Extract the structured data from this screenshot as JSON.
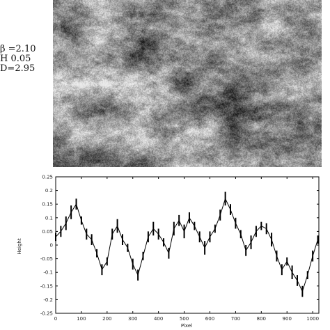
{
  "image": {
    "description_free": true,
    "colormap": "grayscale",
    "parameters": [
      {
        "text": "β =2.10"
      },
      {
        "text": "H 0.05"
      },
      {
        "text": "D=2.95"
      }
    ]
  },
  "chart_data": {
    "type": "line",
    "style": "vertical segments (high-low bars)",
    "color": "#000000",
    "xlabel": "Pixel",
    "ylabel": "Height",
    "xlim": [
      0,
      1024
    ],
    "ylim": [
      -0.25,
      0.25
    ],
    "xticks": [
      0,
      100,
      200,
      300,
      400,
      500,
      600,
      700,
      800,
      900,
      1000
    ],
    "yticks": [
      -0.25,
      -0.2,
      -0.15,
      -0.1,
      -0.05,
      0,
      0.05,
      0.1,
      0.15,
      0.2,
      0.25
    ],
    "x": [
      0,
      20,
      40,
      60,
      80,
      100,
      120,
      140,
      160,
      180,
      200,
      220,
      240,
      260,
      280,
      300,
      320,
      340,
      360,
      380,
      400,
      420,
      440,
      460,
      480,
      500,
      520,
      540,
      560,
      580,
      600,
      620,
      640,
      660,
      680,
      700,
      720,
      740,
      760,
      780,
      800,
      820,
      840,
      860,
      880,
      900,
      920,
      940,
      960,
      980,
      1000,
      1020
    ],
    "y": [
      0.03,
      0.05,
      0.08,
      0.12,
      0.15,
      0.09,
      0.04,
      0.02,
      -0.03,
      -0.09,
      -0.06,
      0.04,
      0.07,
      0.02,
      -0.01,
      -0.07,
      -0.11,
      -0.04,
      0.03,
      0.06,
      0.04,
      0.01,
      -0.03,
      0.06,
      0.09,
      0.05,
      0.1,
      0.07,
      0.03,
      -0.01,
      0.03,
      0.06,
      0.11,
      0.17,
      0.13,
      0.08,
      0.04,
      -0.02,
      0.01,
      0.05,
      0.07,
      0.06,
      0.02,
      -0.04,
      -0.09,
      -0.06,
      -0.1,
      -0.13,
      -0.17,
      -0.11,
      -0.04,
      0.02
    ],
    "spread": [
      0.03,
      0.04,
      0.05,
      0.05,
      0.04,
      0.03,
      0.04,
      0.04,
      0.03,
      0.04,
      0.03,
      0.04,
      0.05,
      0.04,
      0.03,
      0.04,
      0.04,
      0.03,
      0.04,
      0.05,
      0.04,
      0.03,
      0.04,
      0.05,
      0.04,
      0.05,
      0.04,
      0.03,
      0.04,
      0.05,
      0.04,
      0.03,
      0.04,
      0.05,
      0.04,
      0.04,
      0.03,
      0.04,
      0.05,
      0.04,
      0.03,
      0.04,
      0.05,
      0.04,
      0.04,
      0.03,
      0.05,
      0.04,
      0.04,
      0.03,
      0.04,
      0.03
    ],
    "grid": false
  }
}
